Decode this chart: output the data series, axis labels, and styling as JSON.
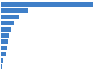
{
  "values": [
    2200,
    650,
    420,
    310,
    250,
    200,
    175,
    150,
    120,
    55,
    25
  ],
  "bar_color": "#3f7fc8",
  "background_color": "#ffffff",
  "figsize": [
    1.0,
    0.71
  ],
  "dpi": 100,
  "xlim": [
    0,
    2350
  ],
  "grid_color": "#d0d0d0",
  "bar_height": 0.75
}
